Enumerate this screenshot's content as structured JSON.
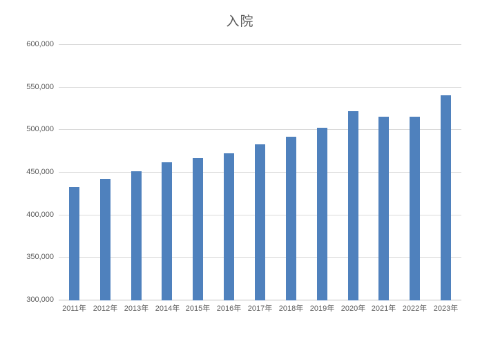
{
  "chart_data": {
    "type": "bar",
    "title": "入院",
    "categories": [
      "2011年",
      "2012年",
      "2013年",
      "2014年",
      "2015年",
      "2016年",
      "2017年",
      "2018年",
      "2019年",
      "2020年",
      "2021年",
      "2022年",
      "2023年"
    ],
    "values": [
      433000,
      443000,
      452000,
      462000,
      467000,
      473000,
      483000,
      492000,
      503000,
      522000,
      516000,
      516000,
      541000
    ],
    "xlabel": "",
    "ylabel": "",
    "ylim": [
      300000,
      600000
    ],
    "ytick_step": 50000,
    "ytick_labels": [
      "300,000",
      "350,000",
      "400,000",
      "450,000",
      "500,000",
      "550,000",
      "600,000"
    ],
    "grid": true,
    "legend_position": "none",
    "colors": {
      "bar": "#4f81bd",
      "gridline": "#d9d9d9",
      "axis_line": "#bfbfbf",
      "text": "#595959",
      "background": "#ffffff"
    }
  }
}
